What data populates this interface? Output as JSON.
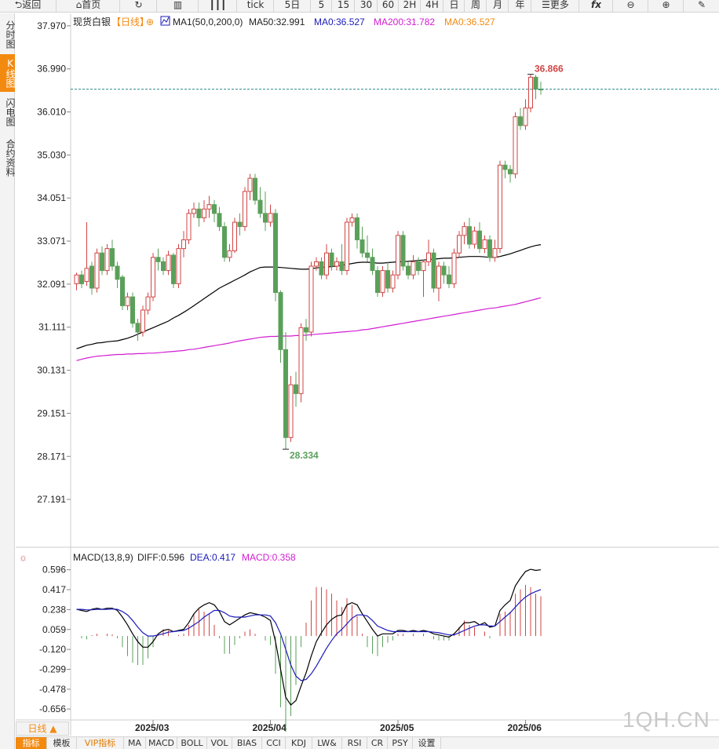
{
  "toolbar": {
    "back": "返回",
    "home": "首页",
    "tick": "tick",
    "d5": "5日",
    "m5": "5",
    "m15": "15",
    "m30": "30",
    "m60": "60",
    "h2": "2H",
    "h4": "4H",
    "day": "日",
    "week": "周",
    "month": "月",
    "year": "年",
    "more": "更多"
  },
  "sidetabs": [
    "分时图",
    "K线图",
    "闪电图",
    "合约资料"
  ],
  "main_legend": {
    "symbol": "现货白银",
    "period": "【日线】",
    "circle": "⊕",
    "ma_name": "MA1(50,0,200,0)",
    "ma50": "MA50:32.991",
    "ma0a": "MA0:36.527",
    "ma200": "MA200:31.782",
    "ma0b": "MA0:36.527"
  },
  "macd_legend": {
    "name": "MACD(13,8,9)",
    "diff": "DIFF:0.596",
    "dea": "DEA:0.417",
    "macd": "MACD:0.358"
  },
  "colors": {
    "up": "#d04545",
    "down": "#5aa05a",
    "ma50": "#000000",
    "ma200": "#d21dd2",
    "dashed": "#2a8a8a",
    "diff": "#000000",
    "dea": "#1b1bb8",
    "ma0": "#1b1bb8",
    "ma0b": "#f38a10"
  },
  "chart_data": [
    {
      "type": "candlestick",
      "title": "现货白银",
      "y_ticks": [
        "37.970",
        "36.990",
        "36.010",
        "35.030",
        "34.051",
        "33.071",
        "32.091",
        "31.111",
        "30.131",
        "29.151",
        "28.171",
        "27.191"
      ],
      "ylim": [
        26.8,
        38.2
      ],
      "x_ticks": [
        "2025/03",
        "2025/04",
        "2025/05",
        "2025/06"
      ],
      "x_tick_index": [
        15,
        38,
        63,
        88
      ],
      "high_label": "36.866",
      "low_label": "28.334",
      "current_price": 36.527,
      "candles": [
        [
          32.1,
          32.3,
          31.95,
          32.35
        ],
        [
          32.3,
          32.1,
          32.0,
          32.4
        ],
        [
          32.15,
          32.45,
          32.05,
          33.5
        ],
        [
          32.5,
          32.0,
          31.85,
          32.6
        ],
        [
          32.0,
          32.8,
          31.9,
          32.9
        ],
        [
          32.8,
          32.4,
          32.3,
          32.95
        ],
        [
          32.4,
          32.9,
          32.3,
          33.0
        ],
        [
          32.9,
          32.5,
          32.4,
          33.1
        ],
        [
          32.5,
          32.2,
          32.0,
          32.6
        ],
        [
          32.25,
          31.6,
          31.5,
          32.3
        ],
        [
          31.6,
          31.8,
          31.5,
          31.9
        ],
        [
          31.8,
          31.2,
          31.1,
          31.9
        ],
        [
          31.2,
          31.0,
          30.8,
          31.3
        ],
        [
          31.0,
          31.5,
          30.9,
          31.6
        ],
        [
          31.5,
          31.8,
          31.4,
          31.9
        ],
        [
          31.8,
          32.7,
          31.7,
          32.8
        ],
        [
          32.7,
          32.6,
          32.4,
          32.9
        ],
        [
          32.6,
          32.4,
          32.3,
          32.7
        ],
        [
          32.4,
          32.75,
          32.3,
          32.85
        ],
        [
          32.75,
          32.1,
          32.0,
          32.8
        ],
        [
          32.1,
          32.9,
          32.0,
          33.0
        ],
        [
          32.9,
          33.1,
          32.7,
          33.3
        ],
        [
          33.1,
          33.7,
          33.0,
          33.8
        ],
        [
          33.7,
          33.8,
          33.6,
          33.95
        ],
        [
          33.8,
          33.6,
          33.4,
          33.95
        ],
        [
          33.6,
          33.8,
          33.5,
          34.0
        ],
        [
          33.8,
          33.9,
          33.6,
          34.1
        ],
        [
          33.9,
          33.7,
          33.5,
          34.0
        ],
        [
          33.7,
          33.4,
          33.3,
          33.85
        ],
        [
          33.4,
          32.7,
          32.6,
          33.5
        ],
        [
          32.7,
          32.85,
          32.6,
          33.0
        ],
        [
          32.85,
          33.5,
          32.8,
          33.6
        ],
        [
          33.5,
          33.4,
          33.2,
          33.7
        ],
        [
          33.4,
          34.2,
          33.3,
          34.3
        ],
        [
          34.2,
          34.5,
          34.0,
          34.6
        ],
        [
          34.5,
          34.0,
          33.9,
          34.6
        ],
        [
          34.0,
          33.7,
          33.6,
          34.3
        ],
        [
          33.7,
          33.5,
          33.3,
          34.2
        ],
        [
          33.5,
          33.7,
          33.4,
          33.9
        ],
        [
          33.7,
          31.9,
          31.7,
          33.8
        ],
        [
          31.9,
          30.6,
          30.3,
          31.95
        ],
        [
          30.6,
          28.6,
          28.334,
          31.0
        ],
        [
          28.6,
          29.8,
          28.5,
          30.0
        ],
        [
          29.8,
          29.6,
          29.3,
          30.1
        ],
        [
          29.6,
          31.1,
          29.4,
          31.2
        ],
        [
          31.1,
          31.0,
          30.8,
          31.3
        ],
        [
          31.0,
          32.5,
          30.9,
          32.6
        ],
        [
          32.5,
          32.6,
          32.4,
          32.7
        ],
        [
          32.6,
          32.3,
          32.2,
          32.7
        ],
        [
          32.3,
          32.8,
          32.2,
          33.0
        ],
        [
          32.8,
          32.5,
          32.4,
          32.9
        ],
        [
          32.5,
          32.6,
          32.4,
          32.7
        ],
        [
          32.6,
          32.4,
          32.3,
          33.0
        ],
        [
          32.4,
          33.5,
          32.3,
          33.6
        ],
        [
          33.5,
          33.6,
          33.4,
          33.7
        ],
        [
          33.6,
          33.1,
          32.9,
          33.7
        ],
        [
          33.1,
          32.8,
          32.7,
          33.4
        ],
        [
          32.8,
          32.7,
          32.6,
          33.2
        ],
        [
          32.7,
          32.4,
          32.3,
          32.9
        ],
        [
          32.4,
          31.9,
          31.8,
          32.5
        ],
        [
          31.9,
          32.4,
          31.8,
          32.5
        ],
        [
          32.4,
          32.0,
          31.9,
          32.6
        ],
        [
          32.0,
          32.3,
          31.9,
          32.4
        ],
        [
          32.3,
          33.2,
          32.2,
          33.3
        ],
        [
          33.2,
          32.5,
          32.4,
          33.3
        ],
        [
          32.5,
          32.3,
          32.2,
          32.6
        ],
        [
          32.3,
          32.6,
          32.2,
          32.75
        ],
        [
          32.6,
          32.4,
          32.3,
          32.7
        ],
        [
          32.4,
          32.6,
          31.8,
          32.65
        ],
        [
          32.6,
          32.8,
          32.5,
          33.1
        ],
        [
          32.8,
          32.0,
          31.9,
          32.9
        ],
        [
          32.0,
          32.5,
          31.7,
          32.6
        ],
        [
          32.5,
          32.3,
          32.1,
          32.6
        ],
        [
          32.3,
          32.1,
          32.0,
          32.5
        ],
        [
          32.1,
          32.8,
          32.0,
          32.9
        ],
        [
          32.8,
          33.2,
          32.7,
          33.3
        ],
        [
          33.2,
          33.4,
          33.0,
          33.5
        ],
        [
          33.4,
          33.0,
          32.9,
          33.6
        ],
        [
          33.0,
          33.3,
          32.9,
          33.4
        ],
        [
          33.3,
          32.9,
          32.8,
          33.5
        ],
        [
          32.9,
          33.1,
          32.8,
          33.2
        ],
        [
          33.1,
          32.7,
          32.6,
          33.2
        ],
        [
          32.7,
          32.9,
          32.6,
          33.1
        ],
        [
          32.9,
          34.8,
          32.8,
          34.9
        ],
        [
          34.8,
          34.7,
          34.5,
          34.9
        ],
        [
          34.7,
          34.6,
          34.4,
          34.8
        ],
        [
          34.6,
          35.9,
          34.5,
          36.0
        ],
        [
          35.9,
          35.7,
          35.6,
          36.1
        ],
        [
          35.7,
          36.1,
          35.6,
          36.3
        ],
        [
          36.1,
          36.8,
          36.0,
          36.866
        ],
        [
          36.8,
          36.53,
          36.3,
          36.85
        ],
        [
          36.53,
          36.52,
          36.4,
          36.7
        ]
      ],
      "ma50": [
        30.62,
        30.66,
        30.7,
        30.72,
        30.75,
        30.76,
        30.78,
        30.79,
        30.8,
        30.83,
        30.86,
        30.9,
        30.95,
        31.0,
        31.05,
        31.1,
        31.15,
        31.2,
        31.25,
        31.32,
        31.38,
        31.45,
        31.52,
        31.6,
        31.68,
        31.76,
        31.84,
        31.92,
        32.0,
        32.06,
        32.12,
        32.18,
        32.24,
        32.3,
        32.37,
        32.42,
        32.47,
        32.48,
        32.48,
        32.48,
        32.47,
        32.46,
        32.45,
        32.44,
        32.43,
        32.43,
        32.44,
        32.46,
        32.47,
        32.48,
        32.49,
        32.5,
        32.52,
        32.54,
        32.56,
        32.58,
        32.59,
        32.59,
        32.58,
        32.57,
        32.57,
        32.58,
        32.59,
        32.6,
        32.6,
        32.61,
        32.62,
        32.63,
        32.64,
        32.65,
        32.66,
        32.67,
        32.68,
        32.68,
        32.69,
        32.7,
        32.71,
        32.72,
        32.72,
        32.72,
        32.71,
        32.7,
        32.7,
        32.72,
        32.75,
        32.78,
        32.82,
        32.86,
        32.9,
        32.94,
        32.97,
        32.99
      ],
      "ma200": [
        30.35,
        30.38,
        30.41,
        30.43,
        30.45,
        30.46,
        30.47,
        30.48,
        30.49,
        30.49,
        30.5,
        30.5,
        30.51,
        30.51,
        30.52,
        30.52,
        30.53,
        30.54,
        30.55,
        30.56,
        30.57,
        30.58,
        30.6,
        30.61,
        30.63,
        30.65,
        30.67,
        30.69,
        30.71,
        30.73,
        30.75,
        30.78,
        30.8,
        30.82,
        30.84,
        30.86,
        30.88,
        30.89,
        30.9,
        30.9,
        30.91,
        30.91,
        30.91,
        30.92,
        30.92,
        30.93,
        30.94,
        30.95,
        30.96,
        30.97,
        30.98,
        30.99,
        31.0,
        31.01,
        31.02,
        31.03,
        31.05,
        31.06,
        31.08,
        31.1,
        31.12,
        31.14,
        31.16,
        31.18,
        31.2,
        31.22,
        31.24,
        31.26,
        31.28,
        31.3,
        31.32,
        31.34,
        31.36,
        31.38,
        31.4,
        31.42,
        31.44,
        31.46,
        31.48,
        31.5,
        31.52,
        31.54,
        31.55,
        31.57,
        31.59,
        31.61,
        31.63,
        31.66,
        31.69,
        31.72,
        31.75,
        31.78
      ]
    },
    {
      "type": "macd",
      "title": "MACD(13,8,9)",
      "y_ticks": [
        "0.596",
        "0.417",
        "0.238",
        "0.059",
        "-0.120",
        "-0.299",
        "-0.478",
        "-0.656"
      ],
      "ylim": [
        -0.74,
        0.65
      ],
      "diff": [
        0.24,
        0.23,
        0.22,
        0.24,
        0.25,
        0.24,
        0.25,
        0.25,
        0.23,
        0.17,
        0.1,
        0.02,
        -0.05,
        -0.1,
        -0.1,
        -0.05,
        0.02,
        0.05,
        0.06,
        0.04,
        0.05,
        0.06,
        0.12,
        0.2,
        0.25,
        0.28,
        0.3,
        0.28,
        0.22,
        0.13,
        0.1,
        0.13,
        0.16,
        0.19,
        0.21,
        0.2,
        0.19,
        0.17,
        0.14,
        -0.05,
        -0.3,
        -0.55,
        -0.62,
        -0.58,
        -0.45,
        -0.33,
        -0.18,
        -0.05,
        0.03,
        0.1,
        0.15,
        0.18,
        0.19,
        0.28,
        0.3,
        0.28,
        0.2,
        0.13,
        0.06,
        0.0,
        0.02,
        0.02,
        0.02,
        0.05,
        0.05,
        0.04,
        0.05,
        0.04,
        0.05,
        0.04,
        0.02,
        0.01,
        0.0,
        -0.01,
        0.02,
        0.07,
        0.12,
        0.12,
        0.13,
        0.1,
        0.12,
        0.08,
        0.09,
        0.23,
        0.28,
        0.32,
        0.45,
        0.52,
        0.58,
        0.6,
        0.59,
        0.596
      ],
      "dea": [
        0.24,
        0.24,
        0.235,
        0.236,
        0.24,
        0.24,
        0.24,
        0.243,
        0.24,
        0.22,
        0.19,
        0.14,
        0.08,
        0.03,
        0.0,
        0.0,
        0.01,
        0.02,
        0.035,
        0.04,
        0.045,
        0.05,
        0.07,
        0.1,
        0.13,
        0.17,
        0.2,
        0.23,
        0.23,
        0.21,
        0.18,
        0.17,
        0.17,
        0.17,
        0.18,
        0.19,
        0.19,
        0.19,
        0.18,
        0.12,
        0.02,
        -0.12,
        -0.26,
        -0.36,
        -0.4,
        -0.39,
        -0.34,
        -0.27,
        -0.19,
        -0.11,
        -0.04,
        0.02,
        0.06,
        0.11,
        0.16,
        0.19,
        0.19,
        0.18,
        0.14,
        0.09,
        0.07,
        0.05,
        0.04,
        0.04,
        0.04,
        0.04,
        0.04,
        0.04,
        0.04,
        0.04,
        0.035,
        0.03,
        0.02,
        0.01,
        0.01,
        0.03,
        0.05,
        0.07,
        0.09,
        0.1,
        0.1,
        0.09,
        0.09,
        0.13,
        0.17,
        0.21,
        0.26,
        0.31,
        0.35,
        0.38,
        0.4,
        0.417
      ]
    }
  ],
  "bottombar": {
    "period": "日线 ▲",
    "tabs": [
      "指标",
      "模板",
      "VIP指标",
      "MA",
      "MACD",
      "BOLL",
      "VOL",
      "BIAS",
      "CCI",
      "KDJ",
      "LW&",
      "RSI",
      "CR",
      "PSY",
      "设置"
    ]
  },
  "watermark": "1QH.CN"
}
